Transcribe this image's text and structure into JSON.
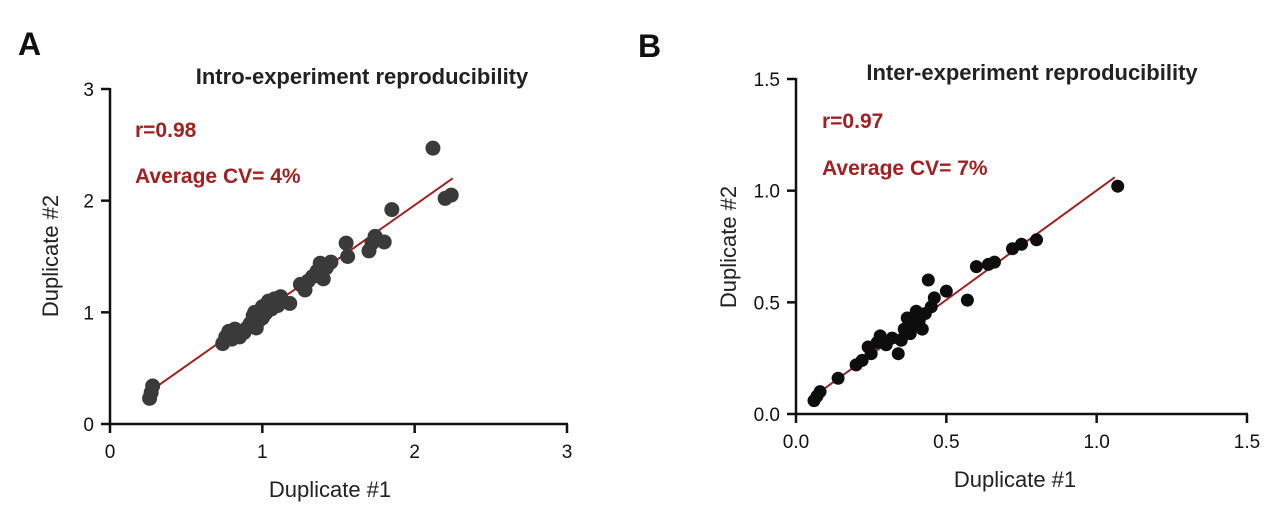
{
  "panels": {
    "a_letter": "A",
    "b_letter": "B"
  },
  "colors": {
    "fit_line": "#a32021",
    "annotation": "#a32021",
    "points_a": "#3a3a3a",
    "points_b": "#0d0d0d",
    "axis": "#111111"
  },
  "chart_data": [
    {
      "type": "scatter",
      "title": "Intro-experiment reproducibility",
      "xlabel": "Duplicate #1",
      "ylabel": "Duplicate #2",
      "xlim": [
        0,
        3
      ],
      "ylim": [
        0,
        3
      ],
      "xticks": [
        "0",
        "1",
        "2",
        "3"
      ],
      "yticks": [
        "0",
        "1",
        "2",
        "3"
      ],
      "xtick_values": [
        0,
        1,
        2,
        3
      ],
      "ytick_values": [
        0,
        1,
        2,
        3
      ],
      "annotations": [
        "r=0.98",
        "Average CV= 4%"
      ],
      "fit_line": [
        [
          0.27,
          0.3
        ],
        [
          2.25,
          2.2
        ]
      ],
      "points": [
        [
          0.26,
          0.23
        ],
        [
          0.27,
          0.28
        ],
        [
          0.28,
          0.34
        ],
        [
          0.74,
          0.72
        ],
        [
          0.76,
          0.78
        ],
        [
          0.78,
          0.83
        ],
        [
          0.8,
          0.76
        ],
        [
          0.82,
          0.85
        ],
        [
          0.85,
          0.78
        ],
        [
          0.88,
          0.82
        ],
        [
          0.9,
          0.86
        ],
        [
          0.92,
          0.9
        ],
        [
          0.94,
          0.97
        ],
        [
          0.95,
          1.0
        ],
        [
          0.96,
          0.86
        ],
        [
          0.98,
          0.93
        ],
        [
          1.0,
          0.95
        ],
        [
          1.0,
          1.05
        ],
        [
          1.02,
          0.99
        ],
        [
          1.04,
          1.1
        ],
        [
          1.06,
          1.03
        ],
        [
          1.08,
          1.12
        ],
        [
          1.1,
          1.06
        ],
        [
          1.12,
          1.14
        ],
        [
          1.18,
          1.08
        ],
        [
          1.25,
          1.25
        ],
        [
          1.28,
          1.2
        ],
        [
          1.3,
          1.28
        ],
        [
          1.33,
          1.32
        ],
        [
          1.36,
          1.37
        ],
        [
          1.38,
          1.44
        ],
        [
          1.4,
          1.3
        ],
        [
          1.42,
          1.4
        ],
        [
          1.45,
          1.45
        ],
        [
          1.55,
          1.62
        ],
        [
          1.56,
          1.5
        ],
        [
          1.7,
          1.55
        ],
        [
          1.72,
          1.62
        ],
        [
          1.74,
          1.68
        ],
        [
          1.8,
          1.63
        ],
        [
          1.85,
          1.92
        ],
        [
          2.12,
          2.47
        ],
        [
          2.2,
          2.02
        ],
        [
          2.24,
          2.05
        ]
      ]
    },
    {
      "type": "scatter",
      "title": "Inter-experiment reproducibility",
      "xlabel": "Duplicate #1",
      "ylabel": "Duplicate #2",
      "xlim": [
        0,
        1.5
      ],
      "ylim": [
        0,
        1.5
      ],
      "xticks": [
        "0.0",
        "0.5",
        "1.0",
        "1.5"
      ],
      "yticks": [
        "0.0",
        "0.5",
        "1.0",
        "1.5"
      ],
      "xtick_values": [
        0,
        0.5,
        1.0,
        1.5
      ],
      "ytick_values": [
        0,
        0.5,
        1.0,
        1.5
      ],
      "annotations": [
        "r=0.97",
        "Average CV= 7%"
      ],
      "fit_line": [
        [
          0.06,
          0.08
        ],
        [
          1.06,
          1.06
        ]
      ],
      "points": [
        [
          0.06,
          0.06
        ],
        [
          0.07,
          0.08
        ],
        [
          0.08,
          0.1
        ],
        [
          0.14,
          0.16
        ],
        [
          0.2,
          0.22
        ],
        [
          0.22,
          0.24
        ],
        [
          0.24,
          0.3
        ],
        [
          0.25,
          0.27
        ],
        [
          0.27,
          0.32
        ],
        [
          0.28,
          0.35
        ],
        [
          0.3,
          0.31
        ],
        [
          0.32,
          0.34
        ],
        [
          0.34,
          0.27
        ],
        [
          0.35,
          0.33
        ],
        [
          0.36,
          0.38
        ],
        [
          0.37,
          0.43
        ],
        [
          0.38,
          0.36
        ],
        [
          0.39,
          0.4
        ],
        [
          0.4,
          0.46
        ],
        [
          0.41,
          0.42
        ],
        [
          0.42,
          0.38
        ],
        [
          0.43,
          0.45
        ],
        [
          0.44,
          0.6
        ],
        [
          0.45,
          0.48
        ],
        [
          0.46,
          0.52
        ],
        [
          0.5,
          0.55
        ],
        [
          0.57,
          0.51
        ],
        [
          0.6,
          0.66
        ],
        [
          0.64,
          0.67
        ],
        [
          0.66,
          0.68
        ],
        [
          0.72,
          0.74
        ],
        [
          0.75,
          0.76
        ],
        [
          0.8,
          0.78
        ],
        [
          1.07,
          1.02
        ]
      ]
    }
  ]
}
